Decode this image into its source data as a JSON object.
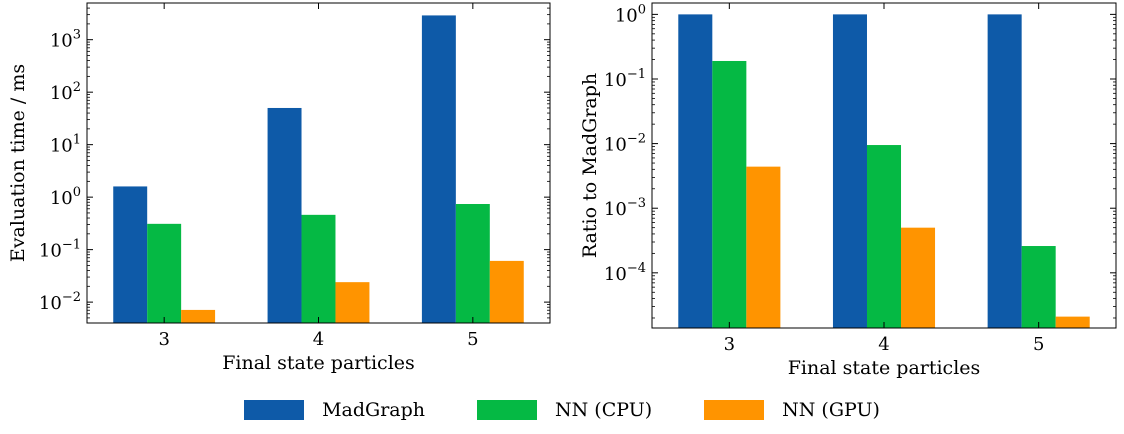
{
  "colors": {
    "madgraph": "#0e5aa8",
    "nn_cpu": "#05b944",
    "nn_gpu": "#ff9400"
  },
  "legend": {
    "items": [
      {
        "key": "madgraph",
        "label": "MadGraph"
      },
      {
        "key": "nn_cpu",
        "label": "NN (CPU)"
      },
      {
        "key": "nn_gpu",
        "label": "NN (GPU)"
      }
    ]
  },
  "chart_data": [
    {
      "type": "bar",
      "xlabel": "Final state particles",
      "ylabel": "Evaluation time / ms",
      "yscale": "log",
      "ylim": [
        0.004,
        5000
      ],
      "categories": [
        "3",
        "4",
        "5"
      ],
      "yticks": [
        {
          "value": 0.01,
          "base": "10",
          "exp": "−2"
        },
        {
          "value": 0.1,
          "base": "10",
          "exp": "−1"
        },
        {
          "value": 1,
          "base": "10",
          "exp": "0"
        },
        {
          "value": 10,
          "base": "10",
          "exp": "1"
        },
        {
          "value": 100,
          "base": "10",
          "exp": "2"
        },
        {
          "value": 1000,
          "base": "10",
          "exp": "3"
        }
      ],
      "series": [
        {
          "name": "MadGraph",
          "color_key": "madgraph",
          "values": [
            1.6,
            50,
            2900
          ]
        },
        {
          "name": "NN (CPU)",
          "color_key": "nn_cpu",
          "values": [
            0.31,
            0.46,
            0.74
          ]
        },
        {
          "name": "NN (GPU)",
          "color_key": "nn_gpu",
          "values": [
            0.0071,
            0.024,
            0.061
          ]
        }
      ]
    },
    {
      "type": "bar",
      "xlabel": "Final state particles",
      "ylabel": "Ratio to MadGraph",
      "yscale": "log",
      "ylim": [
        1.4e-05,
        1.5
      ],
      "categories": [
        "3",
        "4",
        "5"
      ],
      "yticks": [
        {
          "value": 0.0001,
          "base": "10",
          "exp": "−4"
        },
        {
          "value": 0.001,
          "base": "10",
          "exp": "−3"
        },
        {
          "value": 0.01,
          "base": "10",
          "exp": "−2"
        },
        {
          "value": 0.1,
          "base": "10",
          "exp": "−1"
        },
        {
          "value": 1,
          "base": "10",
          "exp": "0"
        }
      ],
      "series": [
        {
          "name": "MadGraph",
          "color_key": "madgraph",
          "values": [
            1,
            1,
            1
          ]
        },
        {
          "name": "NN (CPU)",
          "color_key": "nn_cpu",
          "values": [
            0.19,
            0.0095,
            0.00026
          ]
        },
        {
          "name": "NN (GPU)",
          "color_key": "nn_gpu",
          "values": [
            0.0044,
            0.0005,
            2.1e-05
          ]
        }
      ]
    }
  ]
}
